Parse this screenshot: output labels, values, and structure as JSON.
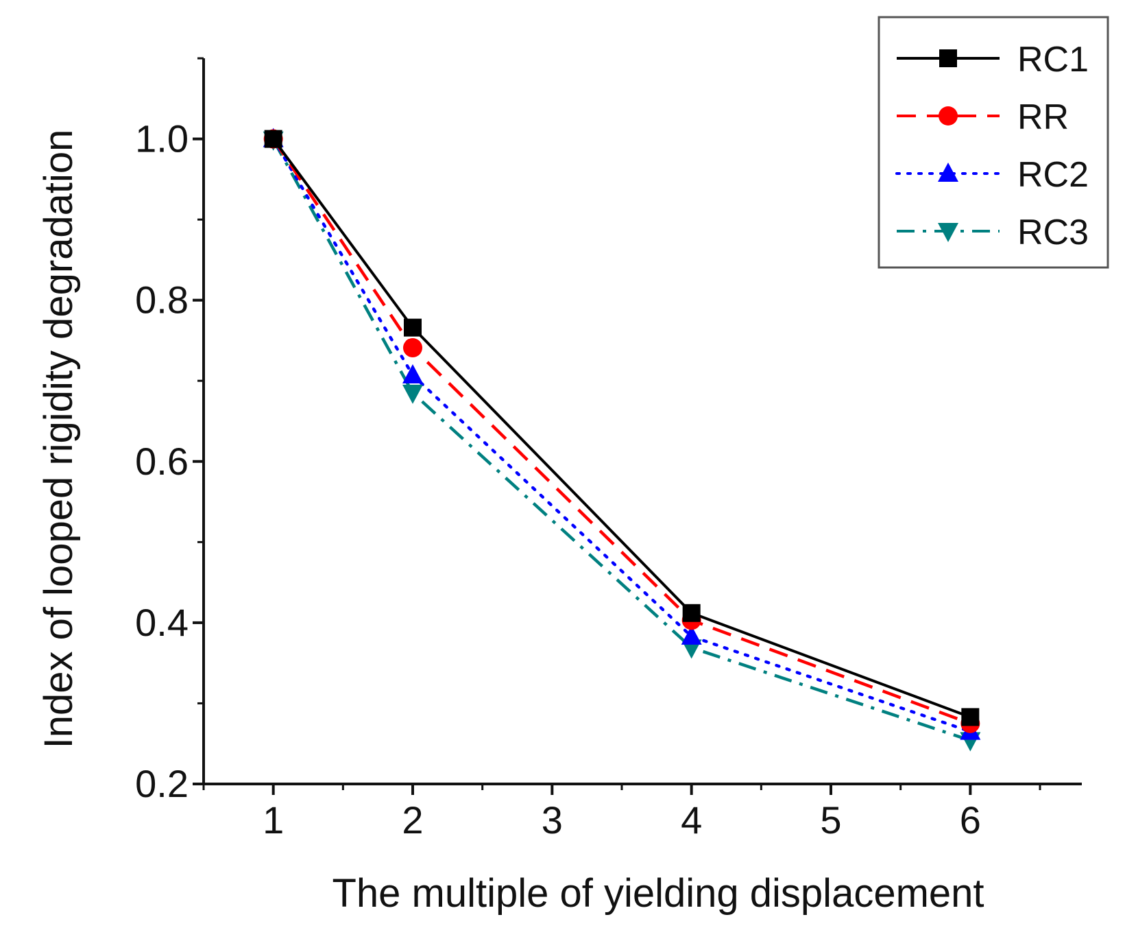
{
  "chart_data": {
    "type": "line",
    "title": "",
    "xlabel": "The multiple of yielding displacement",
    "ylabel": "Index of looped rigidity degradation",
    "xlim": [
      0.5,
      6.8
    ],
    "ylim": [
      0.2,
      1.1
    ],
    "xticks": [
      1,
      2,
      3,
      4,
      5,
      6
    ],
    "yticks": [
      0.2,
      0.4,
      0.6,
      0.8,
      1.0
    ],
    "ytick_labels": [
      "0.2",
      "0.4",
      "0.6",
      "0.8",
      "1.0"
    ],
    "xtick_labels": [
      "1",
      "2",
      "3",
      "4",
      "5",
      "6"
    ],
    "legend_position": "top-right",
    "grid": false,
    "series": [
      {
        "name": "RC1",
        "x": [
          1,
          2,
          4,
          6
        ],
        "values": [
          1.0,
          0.766,
          0.412,
          0.283
        ],
        "color": "#000000",
        "marker": "square",
        "dash": "solid"
      },
      {
        "name": "RR",
        "x": [
          1,
          2,
          4,
          6
        ],
        "values": [
          1.0,
          0.741,
          0.403,
          0.275
        ],
        "color": "#ff0000",
        "marker": "circle",
        "dash": "dashed"
      },
      {
        "name": "RC2",
        "x": [
          1,
          2,
          4,
          6
        ],
        "values": [
          1.0,
          0.707,
          0.383,
          0.265
        ],
        "color": "#0000ff",
        "marker": "triangle-up",
        "dash": "dotted"
      },
      {
        "name": "RC3",
        "x": [
          1,
          2,
          4,
          6
        ],
        "values": [
          0.999,
          0.685,
          0.369,
          0.254
        ],
        "color": "#008080",
        "marker": "triangle-down",
        "dash": "dashdot"
      }
    ]
  }
}
